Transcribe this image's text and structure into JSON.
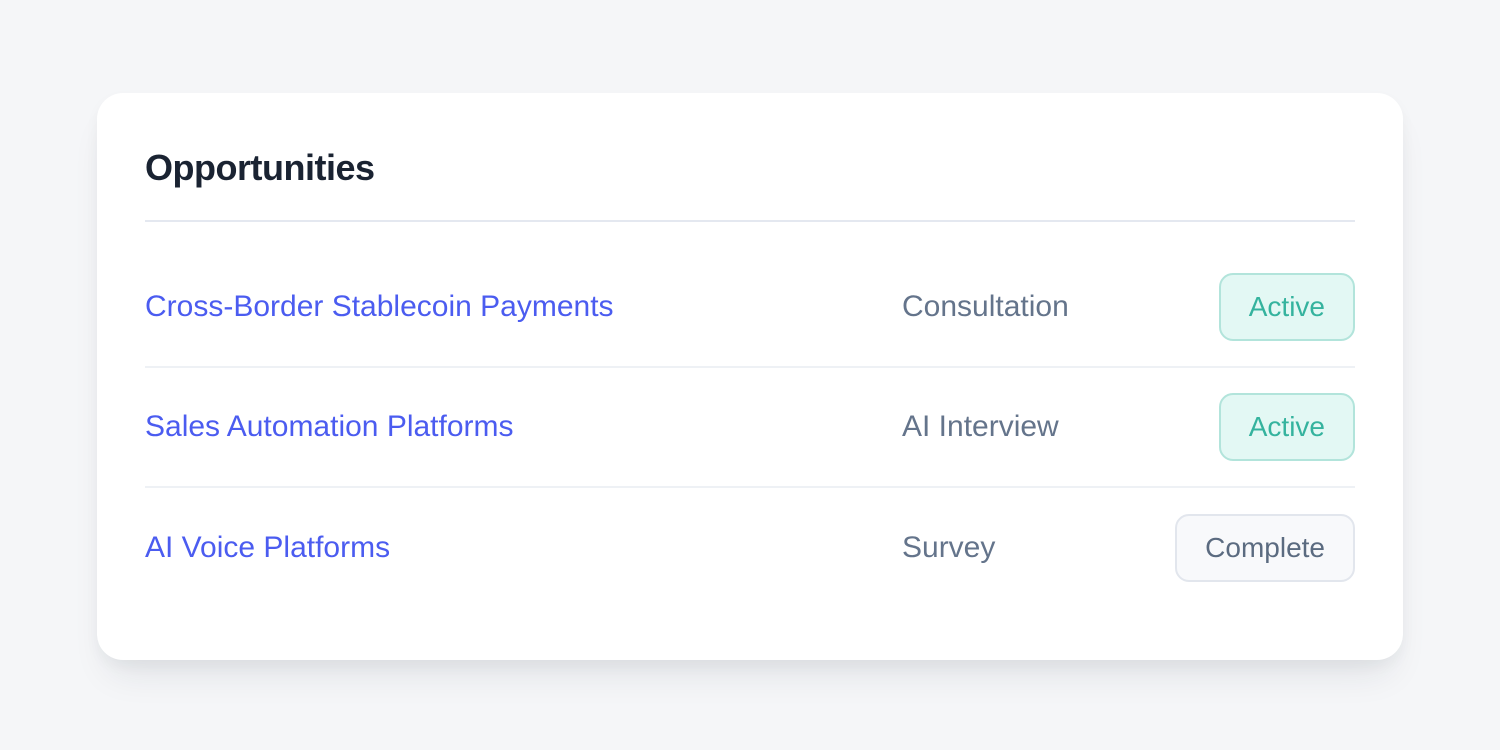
{
  "card": {
    "title": "Opportunities",
    "rows": [
      {
        "name": "Cross-Border Stablecoin Payments",
        "type": "Consultation",
        "status": "Active",
        "variant": "active"
      },
      {
        "name": "Sales Automation Platforms",
        "type": "AI Interview",
        "status": "Active",
        "variant": "active"
      },
      {
        "name": "AI Voice Platforms",
        "type": "Survey",
        "status": "Complete",
        "variant": "complete"
      }
    ]
  },
  "colors": {
    "page_background": "#f5f6f8",
    "card_background": "#ffffff",
    "title_text": "#1a2332",
    "link_blue": "#4b5cf0",
    "muted_text": "#64748b",
    "header_divider": "#e4e8f0",
    "row_divider": "#eef1f5",
    "active_badge_text": "#35b39e",
    "active_badge_bg": "#e3f8f4",
    "active_badge_border": "#b2e4db",
    "complete_badge_text": "#5b6b80",
    "complete_badge_bg": "#f8f9fb",
    "complete_badge_border": "#e2e6ed"
  }
}
